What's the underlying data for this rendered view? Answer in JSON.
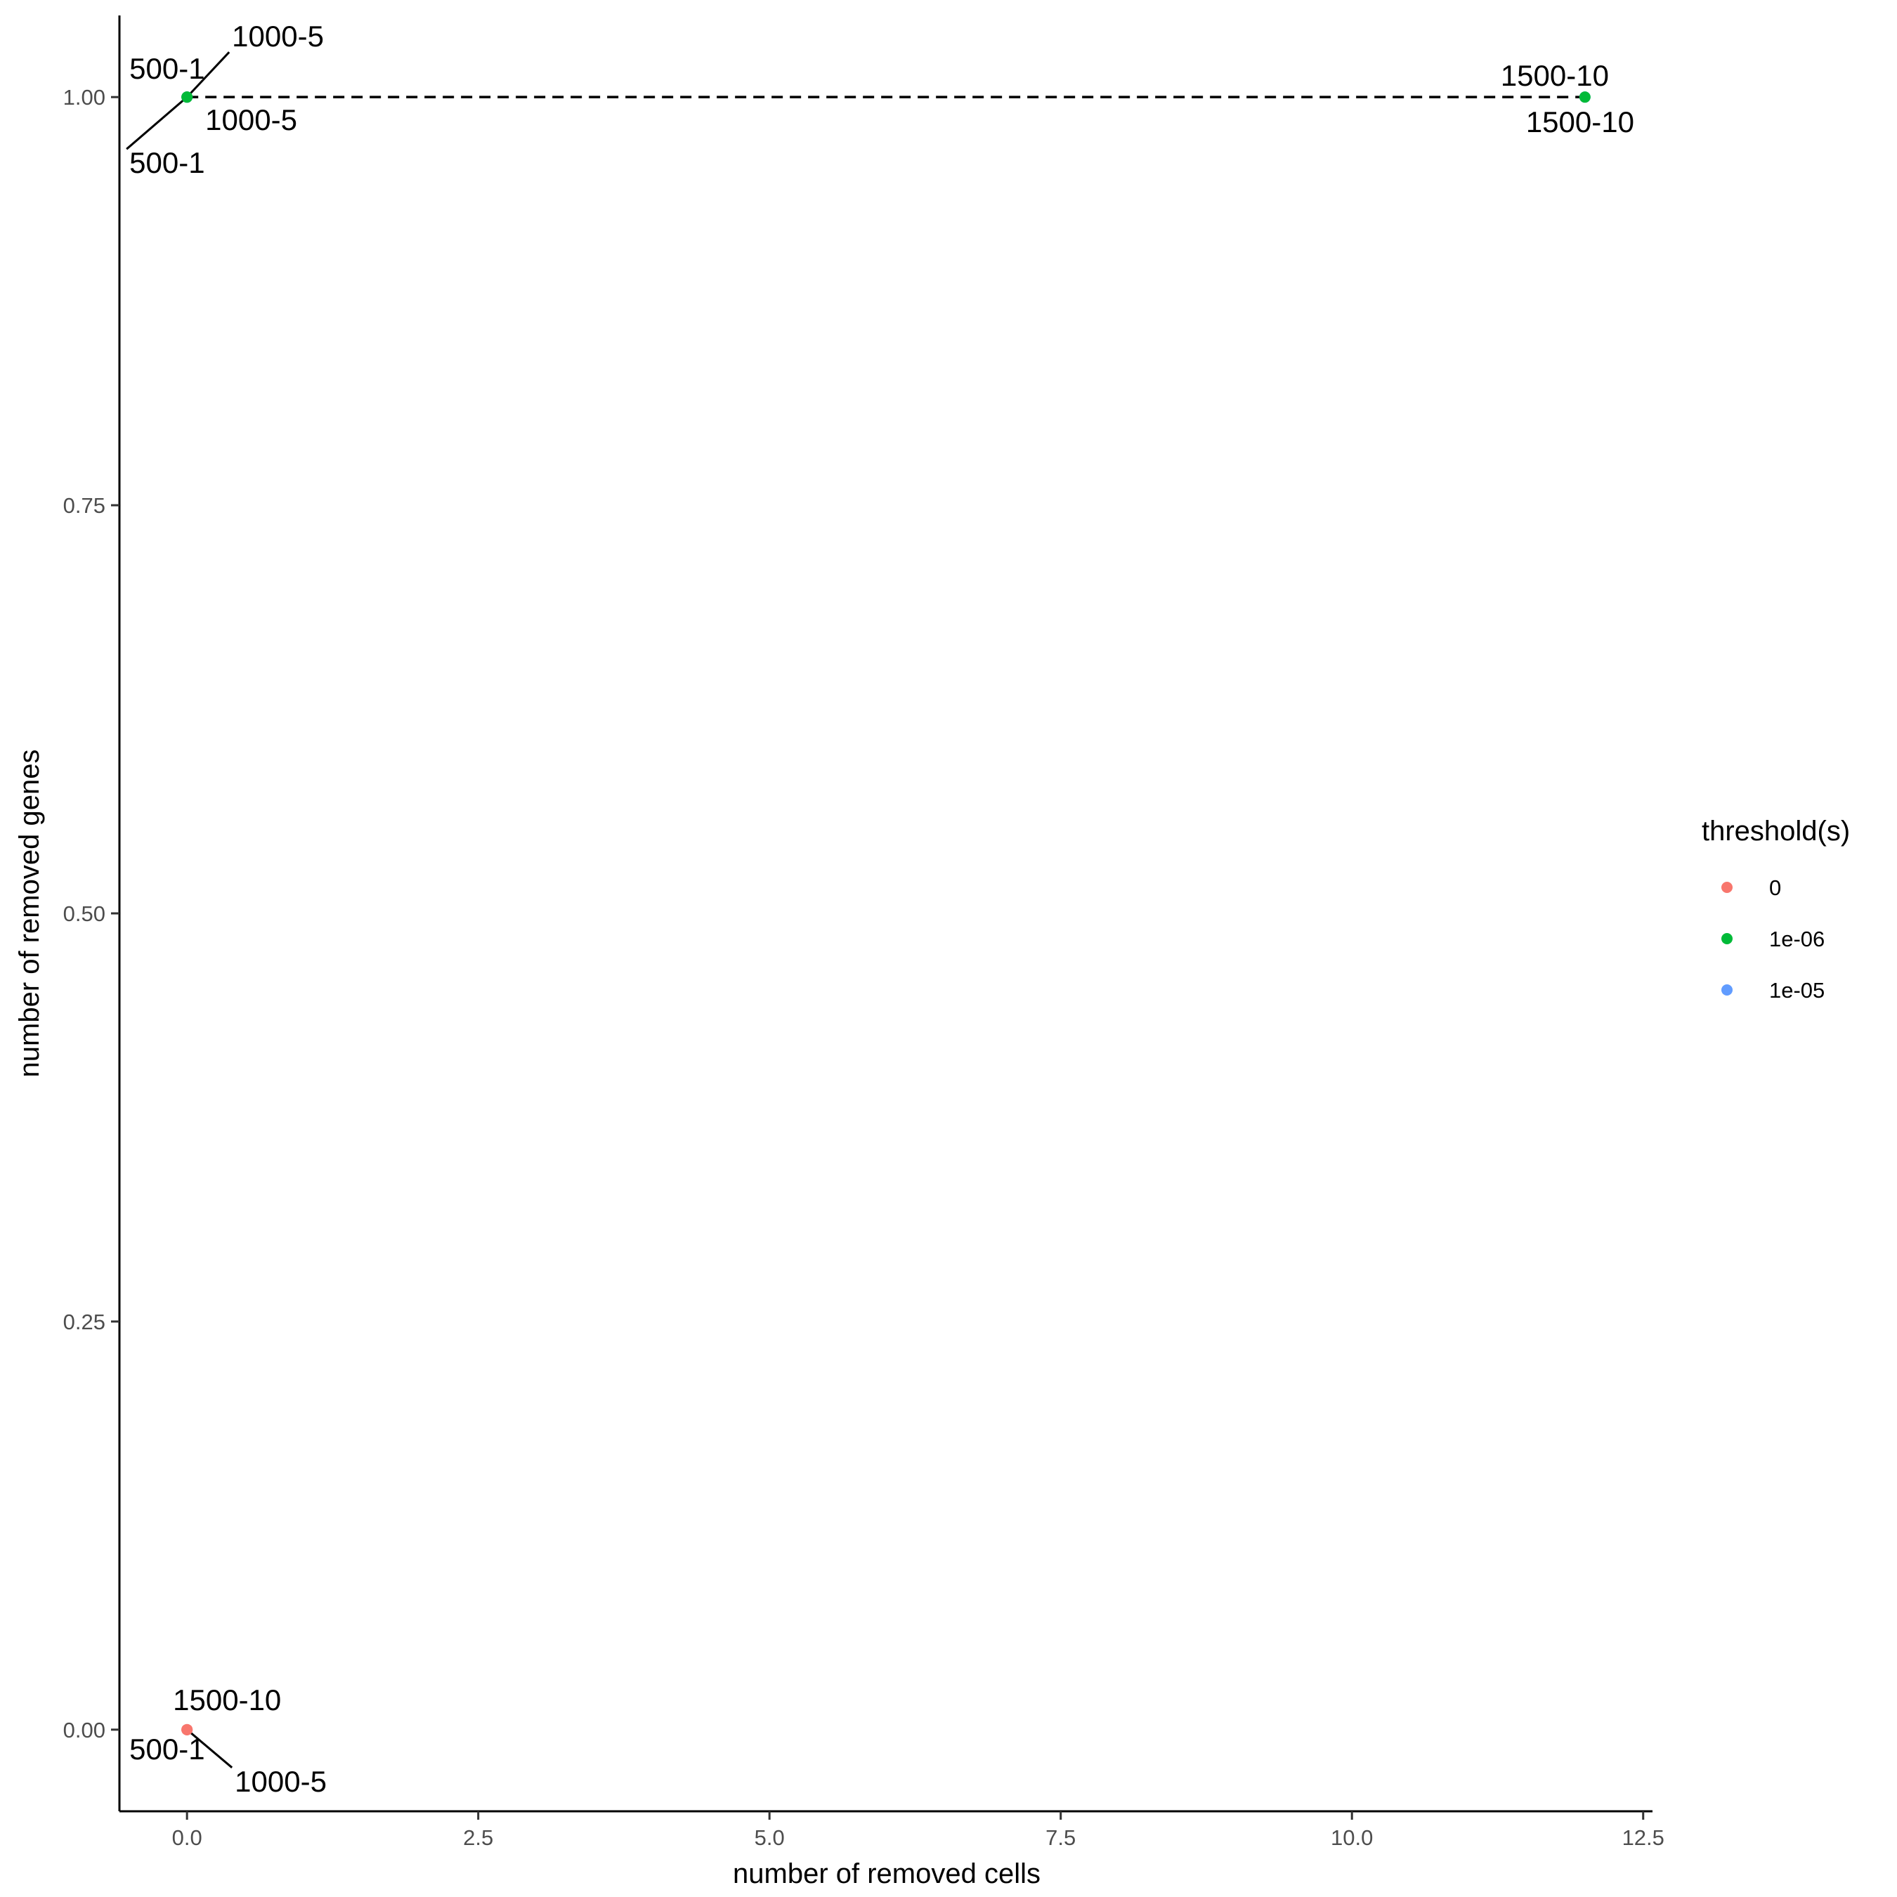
{
  "chart_data": {
    "type": "scatter",
    "xlabel": "number of removed cells",
    "ylabel": "number of removed genes",
    "xlim": [
      -0.58,
      12.58
    ],
    "ylim": [
      -0.05,
      1.05
    ],
    "x_ticks": [
      0.0,
      2.5,
      5.0,
      7.5,
      10.0,
      12.5
    ],
    "x_tick_labels": [
      "0.0",
      "2.5",
      "5.0",
      "7.5",
      "10.0",
      "12.5"
    ],
    "y_ticks": [
      0.0,
      0.25,
      0.5,
      0.75,
      1.0
    ],
    "y_tick_labels": [
      "0.00",
      "0.25",
      "0.50",
      "0.75",
      "1.00"
    ],
    "grid": false,
    "legend": {
      "title": "threshold(s)",
      "placement": "right",
      "entries": [
        {
          "label": "0",
          "color": "#F8766D"
        },
        {
          "label": "1e-06",
          "color": "#00BA38"
        },
        {
          "label": "1e-05",
          "color": "#619CFF"
        }
      ]
    },
    "series": [
      {
        "name": "0",
        "color": "#F8766D",
        "points": [
          {
            "x": 0,
            "y": 0,
            "label": "500-1"
          },
          {
            "x": 0,
            "y": 0,
            "label": "1000-5"
          },
          {
            "x": 0,
            "y": 0,
            "label": "1500-10"
          }
        ]
      },
      {
        "name": "1e-05",
        "color": "#619CFF",
        "points": [
          {
            "x": 0,
            "y": 1,
            "label": "500-1"
          },
          {
            "x": 0,
            "y": 1,
            "label": "1000-5"
          },
          {
            "x": 12,
            "y": 1,
            "label": "1500-10"
          }
        ]
      },
      {
        "name": "1e-06",
        "color": "#00BA38",
        "points": [
          {
            "x": 0,
            "y": 1,
            "label": "500-1"
          },
          {
            "x": 0,
            "y": 1,
            "label": "1000-5"
          },
          {
            "x": 12,
            "y": 1,
            "label": "1500-10"
          }
        ]
      }
    ],
    "reference_line": {
      "from": [
        0,
        1
      ],
      "to": [
        12,
        1
      ],
      "style": "dashed"
    }
  }
}
